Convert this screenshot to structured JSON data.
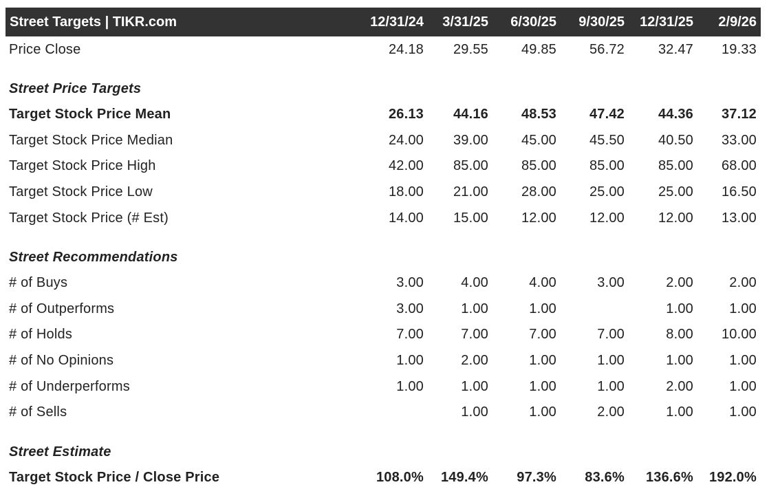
{
  "header": {
    "title": "Street Targets | TIKR.com",
    "dates": [
      "12/31/24",
      "3/31/25",
      "6/30/25",
      "9/30/25",
      "12/31/25",
      "2/9/26"
    ]
  },
  "price_close": {
    "label": "Price Close",
    "values": [
      "24.18",
      "29.55",
      "49.85",
      "56.72",
      "32.47",
      "19.33"
    ]
  },
  "street_price_targets": {
    "heading": "Street Price Targets",
    "rows": [
      {
        "label": "Target Stock Price Mean",
        "values": [
          "26.13",
          "44.16",
          "48.53",
          "47.42",
          "44.36",
          "37.12"
        ]
      },
      {
        "label": "Target Stock Price Median",
        "values": [
          "24.00",
          "39.00",
          "45.00",
          "45.50",
          "40.50",
          "33.00"
        ]
      },
      {
        "label": "Target Stock Price High",
        "values": [
          "42.00",
          "85.00",
          "85.00",
          "85.00",
          "85.00",
          "68.00"
        ]
      },
      {
        "label": "Target Stock Price Low",
        "values": [
          "18.00",
          "21.00",
          "28.00",
          "25.00",
          "25.00",
          "16.50"
        ]
      },
      {
        "label": "Target Stock Price (# Est)",
        "values": [
          "14.00",
          "15.00",
          "12.00",
          "12.00",
          "12.00",
          "13.00"
        ]
      }
    ]
  },
  "street_recommendations": {
    "heading": "Street Recommendations",
    "rows": [
      {
        "label": "# of Buys",
        "values": [
          "3.00",
          "4.00",
          "4.00",
          "3.00",
          "2.00",
          "2.00"
        ]
      },
      {
        "label": "# of Outperforms",
        "values": [
          "3.00",
          "1.00",
          "1.00",
          "",
          "1.00",
          "1.00"
        ]
      },
      {
        "label": "# of Holds",
        "values": [
          "7.00",
          "7.00",
          "7.00",
          "7.00",
          "8.00",
          "10.00"
        ]
      },
      {
        "label": "# of No Opinions",
        "values": [
          "1.00",
          "2.00",
          "1.00",
          "1.00",
          "1.00",
          "1.00"
        ]
      },
      {
        "label": "# of Underperforms",
        "values": [
          "1.00",
          "1.00",
          "1.00",
          "1.00",
          "2.00",
          "1.00"
        ]
      },
      {
        "label": "# of Sells",
        "values": [
          "",
          "1.00",
          "1.00",
          "2.00",
          "1.00",
          "1.00"
        ]
      }
    ]
  },
  "street_estimate": {
    "heading": "Street Estimate",
    "rows": [
      {
        "label": "Target Stock Price / Close Price",
        "values": [
          "108.0%",
          "149.4%",
          "97.3%",
          "83.6%",
          "136.6%",
          "192.0%"
        ]
      }
    ]
  },
  "colors": {
    "header_bg": "#333333",
    "header_text": "#ffffff",
    "body_text": "#222222",
    "background": "#ffffff"
  }
}
